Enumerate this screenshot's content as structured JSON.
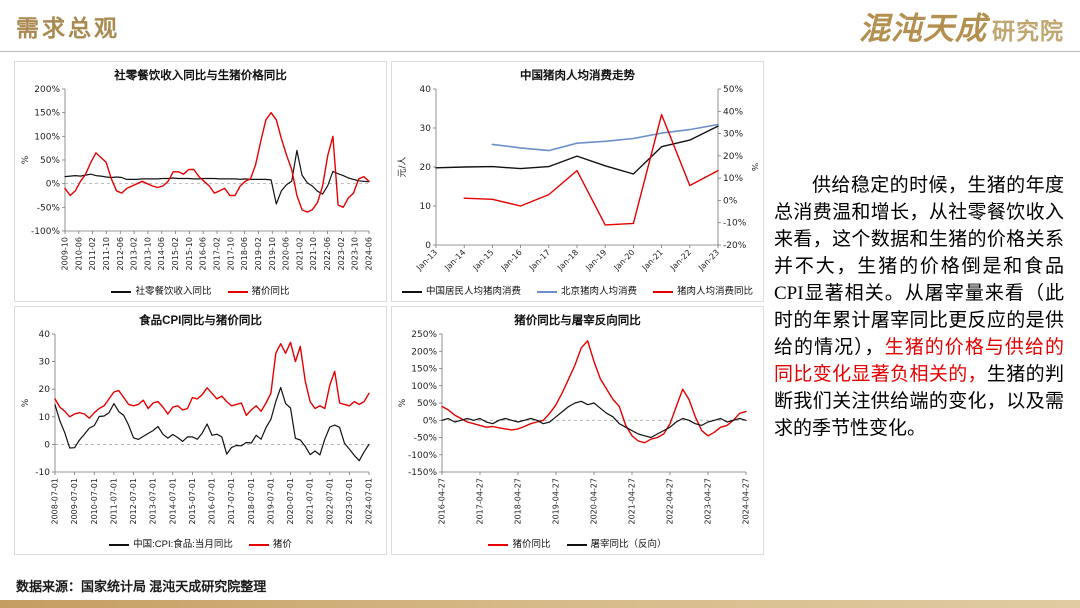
{
  "header": {
    "title": "需求总观",
    "logo_main": "混沌天成",
    "logo_sub": "研究院"
  },
  "footer": {
    "source": "数据来源：国家统计局  混沌天成研究院整理"
  },
  "commentary": {
    "part1": "供给稳定的时候，生猪的年度总消费温和增长，从社零餐饮收入来看，这个数据和生猪的价格关系并不大，生猪的价格倒是和食品CPI显著相关。从屠宰量来看（此时的年累计屠宰同比更反应的是供给的情况），",
    "highlight": "生猪的价格与供给的同比变化显著负相关的，",
    "part2": "生猪的判断我们关注供给端的变化，以及需求的季节性变化。"
  },
  "colors": {
    "accent_gold": "#a98a50",
    "line_black": "#111111",
    "line_red": "#e60000",
    "line_blue": "#6d8fc9"
  },
  "chart_data": [
    {
      "type": "line",
      "title": "社零餐饮收入同比与生猪价格同比",
      "ylabel": "%",
      "y_left": {
        "min": -100,
        "max": 200,
        "ticks": [
          200,
          150,
          100,
          50,
          0,
          -50,
          -100
        ],
        "suffix": "%"
      },
      "x_rot": -90,
      "zero_line": true,
      "x_ticks": [
        "2009-10",
        "2010-06",
        "2011-02",
        "2011-10",
        "2012-06",
        "2013-02",
        "2013-10",
        "2014-06",
        "2015-02",
        "2015-10",
        "2016-06",
        "2017-02",
        "2017-10",
        "2018-06",
        "2019-02",
        "2019-10",
        "2020-06",
        "2021-02",
        "2021-10",
        "2022-06",
        "2023-02",
        "2023-10",
        "2024-06"
      ],
      "series": [
        {
          "name": "社零餐饮收入同比",
          "color": "#111111",
          "width": 1.2,
          "axis": "left",
          "values": [
            15,
            16,
            17,
            16,
            18,
            20,
            17,
            16,
            14,
            13,
            14,
            13,
            9,
            9,
            9,
            10,
            10,
            10,
            10,
            11,
            11,
            12,
            11,
            11,
            11,
            10,
            10,
            11,
            11,
            11,
            10,
            10,
            10,
            10,
            9,
            10,
            9,
            9,
            9,
            9,
            8,
            -43,
            -15,
            -2,
            5,
            70,
            18,
            2,
            -5,
            -16,
            -22,
            -4,
            26,
            21,
            17,
            12,
            9,
            6,
            5,
            4
          ]
        },
        {
          "name": "猪价同比",
          "color": "#e60000",
          "width": 1.4,
          "axis": "left",
          "values": [
            -10,
            -25,
            -15,
            5,
            20,
            45,
            65,
            55,
            45,
            10,
            -15,
            -20,
            -10,
            -5,
            0,
            5,
            0,
            -5,
            -8,
            -5,
            5,
            25,
            25,
            20,
            30,
            30,
            15,
            5,
            -5,
            -20,
            -15,
            -10,
            -25,
            -25,
            -5,
            5,
            10,
            40,
            90,
            135,
            150,
            135,
            95,
            60,
            30,
            -25,
            -55,
            -60,
            -55,
            -40,
            -5,
            60,
            100,
            -45,
            -50,
            -30,
            -20,
            10,
            15,
            5
          ]
        }
      ]
    },
    {
      "type": "line",
      "title": "中国猪肉人均消费走势",
      "ylabel": "元/人",
      "ylabel_right": "%",
      "y_left": {
        "min": 0,
        "max": 40,
        "ticks": [
          40,
          30,
          20,
          10,
          0
        ],
        "suffix": ""
      },
      "y_right": {
        "min": -20,
        "max": 50,
        "ticks": [
          50,
          40,
          30,
          20,
          10,
          0,
          -10,
          -20
        ],
        "suffix": "%"
      },
      "x_rot": -45,
      "zero_line": false,
      "x_ticks": [
        "Jan-13",
        "Jan-14",
        "Jan-15",
        "Jan-16",
        "Jan-17",
        "Jan-18",
        "Jan-19",
        "Jan-20",
        "Jan-21",
        "Jan-22",
        "Jan-23"
      ],
      "series": [
        {
          "name": "中国居民人均猪肉消费",
          "color": "#111111",
          "width": 1.4,
          "axis": "left",
          "values": [
            19.8,
            20.0,
            20.1,
            19.6,
            20.1,
            22.8,
            20.3,
            18.2,
            25.2,
            26.9,
            30.5
          ]
        },
        {
          "name": "北京猪肉人均消费",
          "color": "#6d8fc9",
          "width": 1.6,
          "axis": "left",
          "values": [
            null,
            null,
            25.8,
            24.9,
            24.2,
            26.1,
            26.6,
            27.3,
            28.7,
            29.6,
            30.9
          ]
        },
        {
          "name": "猪肉人均消费同比",
          "color": "#e60000",
          "width": 1.4,
          "axis": "right",
          "values": [
            null,
            1.0,
            0.5,
            -2.5,
            2.6,
            13.4,
            -11.0,
            -10.3,
            38.5,
            6.7,
            13.4
          ]
        }
      ]
    },
    {
      "type": "line",
      "title": "食品CPI同比与猪价同比",
      "ylabel": "%",
      "y_left": {
        "min": -10,
        "max": 40,
        "ticks": [
          40,
          30,
          20,
          10,
          0,
          -10
        ],
        "suffix": ""
      },
      "x_rot": -90,
      "zero_line": true,
      "x_ticks": [
        "2008-07-01",
        "2009-07-01",
        "2010-07-01",
        "2011-07-01",
        "2012-07-01",
        "2013-07-01",
        "2014-07-01",
        "2015-07-01",
        "2016-07-01",
        "2017-07-01",
        "2018-07-01",
        "2019-07-01",
        "2020-07-01",
        "2021-07-01",
        "2022-07-01",
        "2023-07-01",
        "2024-07-01"
      ],
      "series": [
        {
          "name": "中国:CPI:食品:当月同比",
          "color": "#111111",
          "width": 1.2,
          "axis": "left",
          "values": [
            14.4,
            8.5,
            4.2,
            -1.3,
            -1.2,
            1.6,
            3.7,
            5.9,
            6.8,
            10.1,
            10.3,
            11.5,
            14.8,
            11.9,
            10.5,
            7.0,
            2.4,
            1.8,
            2.9,
            4.0,
            5.0,
            6.5,
            3.7,
            2.3,
            3.6,
            2.5,
            1.1,
            2.7,
            2.7,
            1.9,
            4.1,
            7.4,
            3.3,
            3.7,
            2.7,
            -3.5,
            -1.1,
            -0.4,
            -0.5,
            0.7,
            0.5,
            3.3,
            1.9,
            6.1,
            9.1,
            15.5,
            20.6,
            14.8,
            13.2,
            2.2,
            1.6,
            -0.7,
            -3.7,
            -2.4,
            -3.8,
            1.9,
            6.3,
            7.0,
            6.2,
            0.4,
            -1.7,
            -4.0,
            -5.9,
            -2.7,
            0.0
          ]
        },
        {
          "name": "猪价",
          "color": "#e60000",
          "width": 1.4,
          "axis": "left",
          "values": [
            16.5,
            13.5,
            12.0,
            10.0,
            11.0,
            11.5,
            11.0,
            9.5,
            11.5,
            13.0,
            14.0,
            16.5,
            19.0,
            19.5,
            17.0,
            14.5,
            14.0,
            14.5,
            16.0,
            13.0,
            15.0,
            15.5,
            13.5,
            11.0,
            13.5,
            14.0,
            12.5,
            13.0,
            17.0,
            16.5,
            18.0,
            20.5,
            18.5,
            16.5,
            17.5,
            15.5,
            14.0,
            14.5,
            15.0,
            10.5,
            12.5,
            14.0,
            12.0,
            15.0,
            18.5,
            33.0,
            36.5,
            33.0,
            37.0,
            30.0,
            35.5,
            23.0,
            15.5,
            13.0,
            14.0,
            13.0,
            21.5,
            26.5,
            15.0,
            14.5,
            14.0,
            15.5,
            14.5,
            15.5,
            18.5
          ]
        }
      ]
    },
    {
      "type": "line",
      "title": "猪价同比与屠宰反向同比",
      "ylabel": "%",
      "y_left": {
        "min": -150,
        "max": 250,
        "ticks": [
          250,
          200,
          150,
          100,
          50,
          0,
          -50,
          -100,
          -150
        ],
        "suffix": "%"
      },
      "x_rot": -90,
      "zero_line": true,
      "x_ticks": [
        "2016-04-27",
        "2017-04-27",
        "2018-04-27",
        "2019-04-27",
        "2020-04-27",
        "2021-04-27",
        "2022-04-27",
        "2023-04-27",
        "2024-04-27"
      ],
      "series": [
        {
          "name": "猪价同比",
          "color": "#e60000",
          "width": 1.4,
          "axis": "left",
          "values": [
            40,
            30,
            15,
            5,
            -5,
            -10,
            -15,
            -20,
            -18,
            -22,
            -25,
            -28,
            -25,
            -18,
            -10,
            -5,
            0,
            20,
            45,
            80,
            120,
            160,
            210,
            230,
            170,
            120,
            90,
            60,
            40,
            -15,
            -45,
            -60,
            -65,
            -55,
            -50,
            -40,
            -10,
            40,
            90,
            60,
            10,
            -30,
            -45,
            -35,
            -20,
            -15,
            0,
            20,
            25
          ]
        },
        {
          "name": "屠宰同比（反向）",
          "color": "#111111",
          "width": 1.2,
          "axis": "left",
          "values": [
            0,
            5,
            -5,
            0,
            5,
            0,
            5,
            -5,
            -10,
            0,
            5,
            0,
            -5,
            0,
            5,
            0,
            -10,
            -5,
            10,
            25,
            40,
            50,
            55,
            45,
            50,
            35,
            20,
            10,
            -10,
            -20,
            -30,
            -40,
            -45,
            -50,
            -40,
            -30,
            -20,
            -5,
            5,
            0,
            -10,
            -15,
            -5,
            0,
            5,
            -5,
            0,
            5,
            0
          ]
        }
      ]
    }
  ]
}
